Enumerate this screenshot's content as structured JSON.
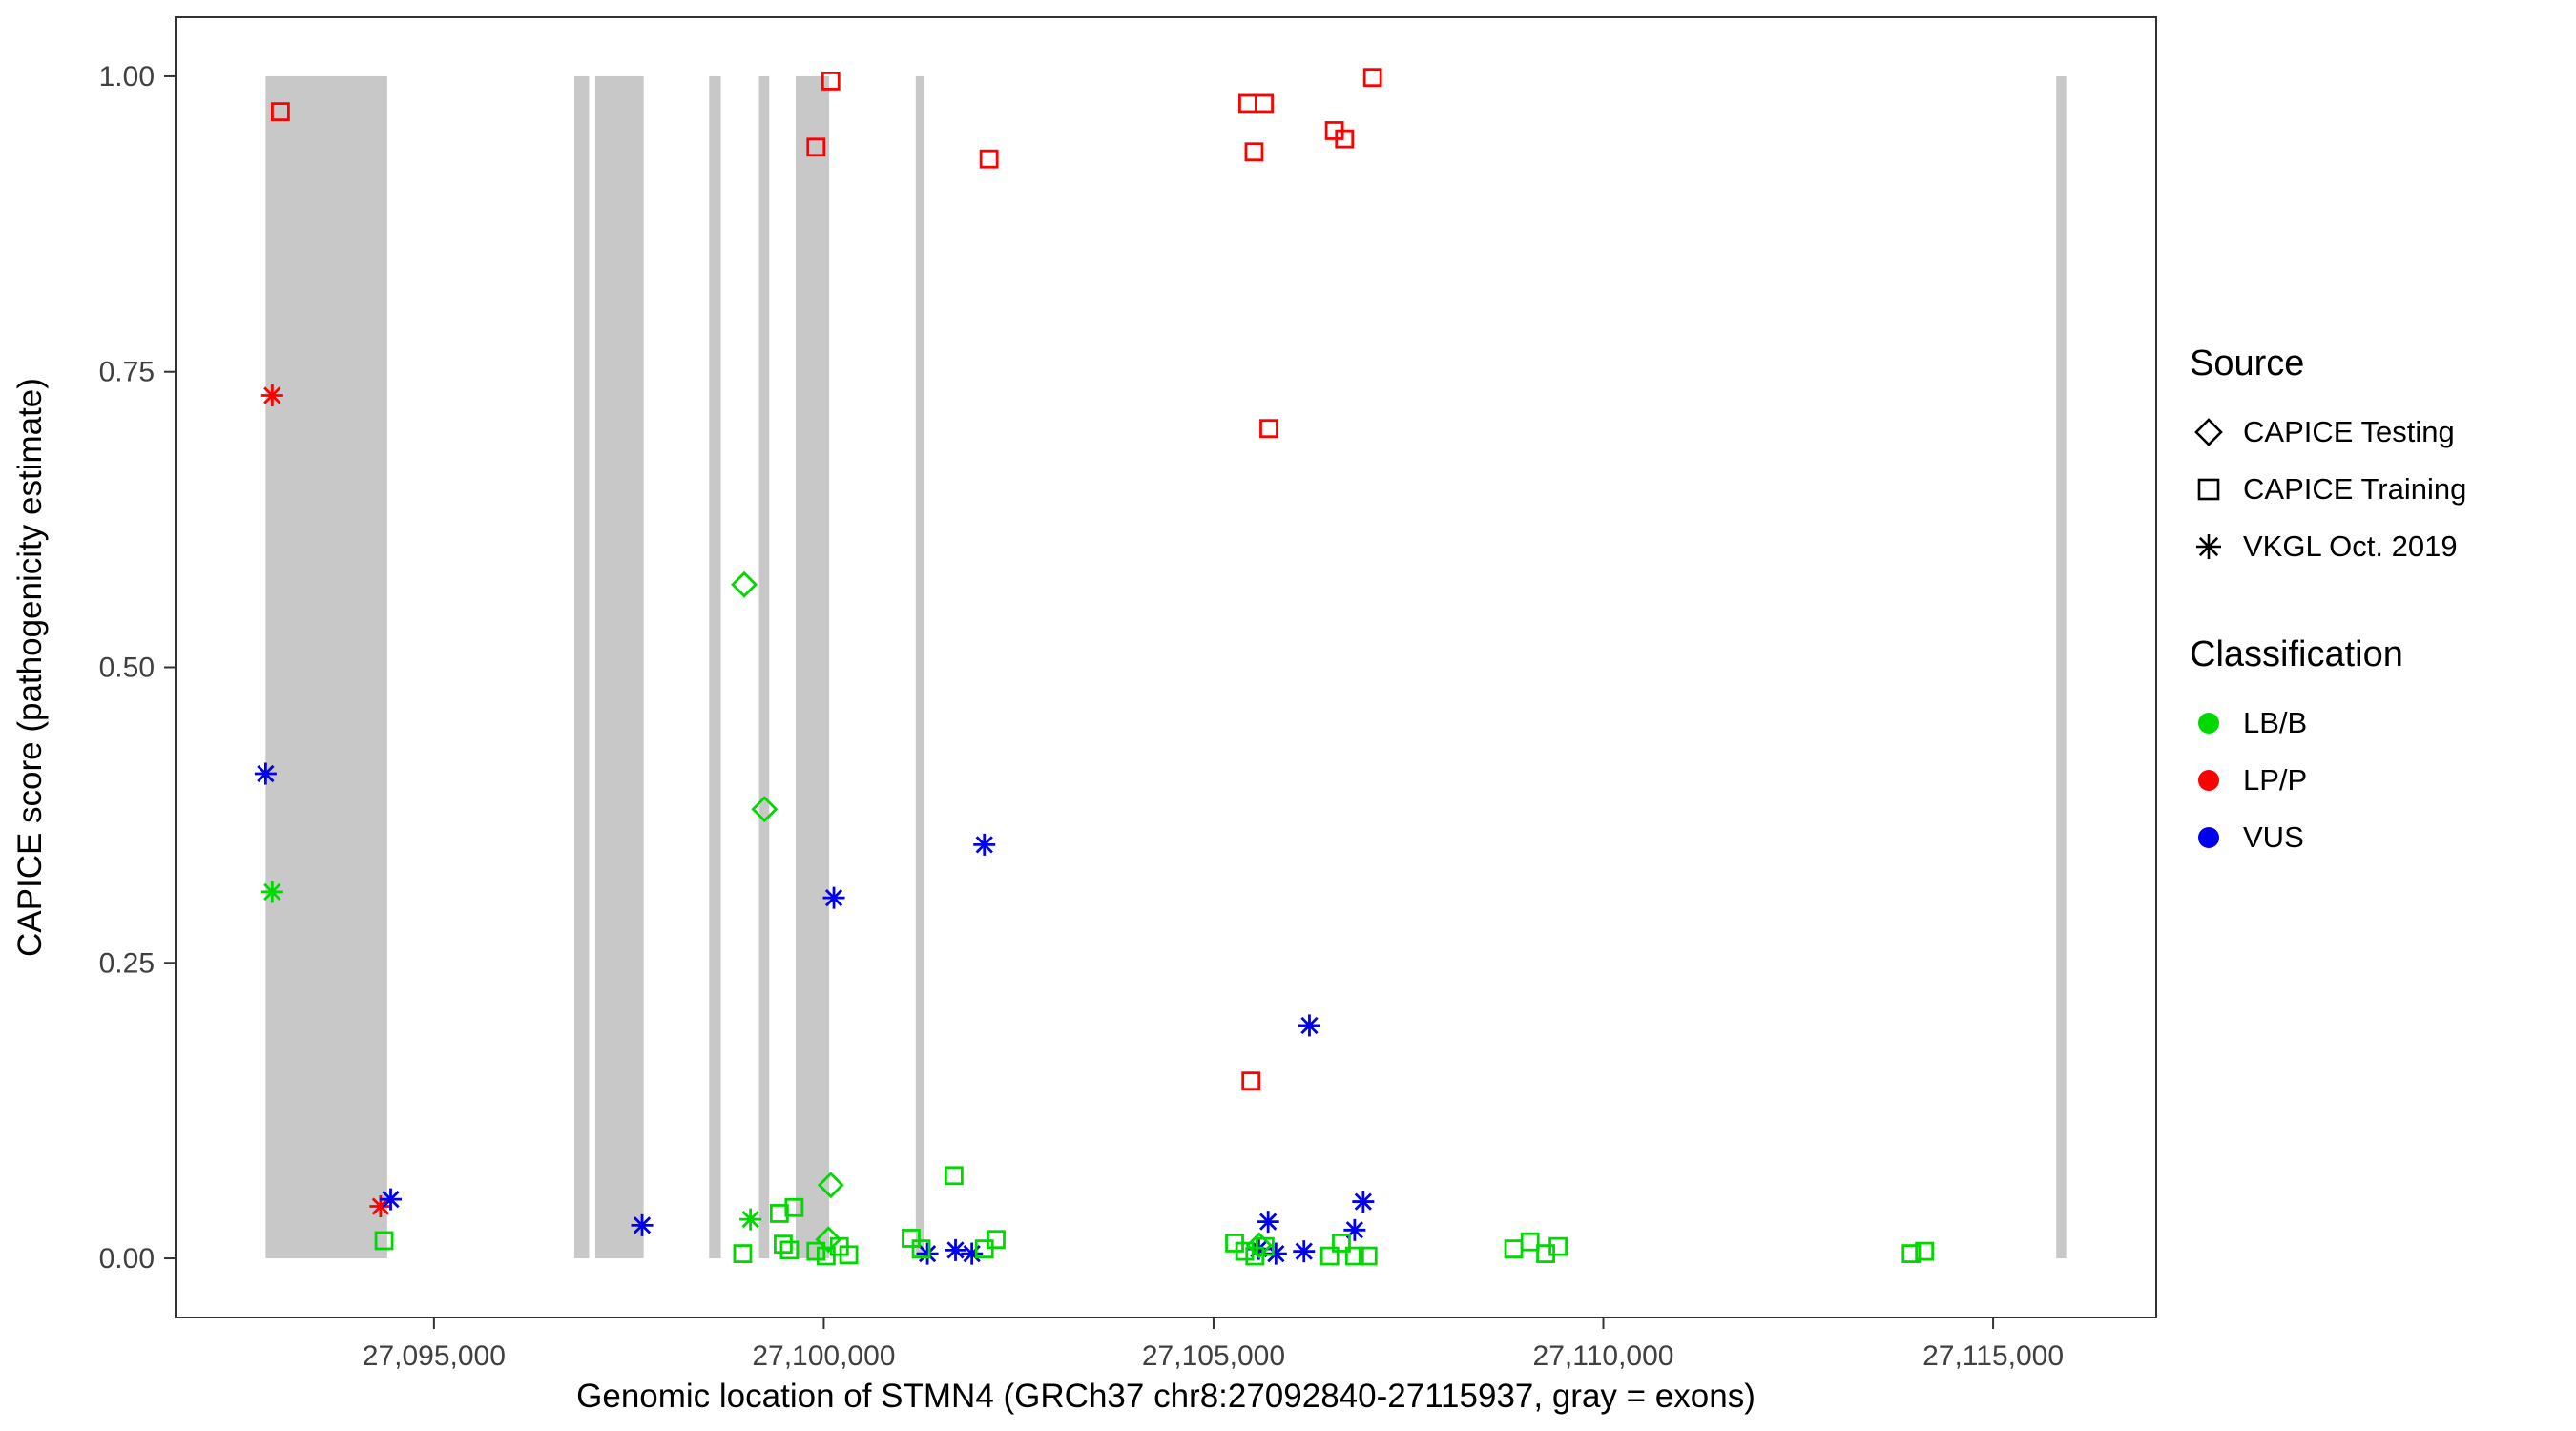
{
  "chart_data": {
    "type": "scatter",
    "title": "",
    "xlabel": "Genomic location of STMN4 (GRCh37 chr8:27092840-27115937, gray = exons)",
    "ylabel": "CAPICE score (pathogenicity estimate)",
    "xlim": [
      27091685,
      27117092
    ],
    "ylim": [
      -0.05,
      1.05
    ],
    "grid": false,
    "panel_border_color": "#333333",
    "exon_color": "#C8C8C8",
    "x_ticks": [
      {
        "value": 27095000,
        "label": "27,095,000"
      },
      {
        "value": 27100000,
        "label": "27,100,000"
      },
      {
        "value": 27105000,
        "label": "27,105,000"
      },
      {
        "value": 27110000,
        "label": "27,110,000"
      },
      {
        "value": 27115000,
        "label": "27,115,000"
      }
    ],
    "y_ticks": [
      {
        "value": 0.0,
        "label": "0.00"
      },
      {
        "value": 0.25,
        "label": "0.25"
      },
      {
        "value": 0.5,
        "label": "0.50"
      },
      {
        "value": 0.75,
        "label": "0.75"
      },
      {
        "value": 1.0,
        "label": "1.00"
      }
    ],
    "exons": [
      [
        27092840,
        27094400
      ],
      [
        27096800,
        27096990
      ],
      [
        27097070,
        27097690
      ],
      [
        27098530,
        27098680
      ],
      [
        27099170,
        27099300
      ],
      [
        27099640,
        27100070
      ],
      [
        27101180,
        27101290
      ],
      [
        27115810,
        27115937
      ]
    ],
    "series": [
      {
        "source": "CAPICE Training",
        "classification": "LP/P",
        "shape": "square",
        "color": "#FF0000",
        "points": [
          [
            27093030,
            0.97
          ],
          [
            27100090,
            0.996
          ],
          [
            27099900,
            0.94
          ],
          [
            27102120,
            0.93
          ],
          [
            27105440,
            0.977
          ],
          [
            27105650,
            0.977
          ],
          [
            27105520,
            0.936
          ],
          [
            27106550,
            0.954
          ],
          [
            27106680,
            0.947
          ],
          [
            27107040,
            0.999
          ],
          [
            27105710,
            0.702
          ],
          [
            27105480,
            0.15
          ]
        ]
      },
      {
        "source": "VKGL Oct. 2019",
        "classification": "LP/P",
        "shape": "asterisk",
        "color": "#FF0000",
        "points": [
          [
            27092925,
            0.73
          ],
          [
            27094315,
            0.044
          ]
        ]
      },
      {
        "source": "VKGL Oct. 2019",
        "classification": "VUS",
        "shape": "asterisk",
        "color": "#0000EE",
        "points": [
          [
            27092840,
            0.41
          ],
          [
            27094445,
            0.05
          ],
          [
            27097670,
            0.028
          ],
          [
            27100130,
            0.305
          ],
          [
            27102060,
            0.35
          ],
          [
            27106230,
            0.197
          ],
          [
            27106920,
            0.048
          ],
          [
            27106810,
            0.024
          ],
          [
            27105700,
            0.031
          ],
          [
            27105580,
            0.008
          ],
          [
            27105800,
            0.004
          ],
          [
            27106160,
            0.006
          ],
          [
            27101330,
            0.004
          ],
          [
            27101690,
            0.007
          ],
          [
            27101900,
            0.004
          ]
        ]
      },
      {
        "source": "VKGL Oct. 2019",
        "classification": "LB/B",
        "shape": "asterisk",
        "color": "#00D800",
        "points": [
          [
            27092925,
            0.31
          ],
          [
            27099060,
            0.033
          ]
        ]
      },
      {
        "source": "CAPICE Testing",
        "classification": "LB/B",
        "shape": "diamond",
        "color": "#00D800",
        "points": [
          [
            27098980,
            0.57
          ],
          [
            27099240,
            0.38
          ],
          [
            27100090,
            0.062
          ],
          [
            27100060,
            0.016
          ],
          [
            27105585,
            0.011
          ]
        ]
      },
      {
        "source": "CAPICE Training",
        "classification": "LB/B",
        "shape": "square",
        "color": "#00D800",
        "points": [
          [
            27094360,
            0.015
          ],
          [
            27098960,
            0.004
          ],
          [
            27099430,
            0.038
          ],
          [
            27099620,
            0.043
          ],
          [
            27099480,
            0.012
          ],
          [
            27099560,
            0.007
          ],
          [
            27099900,
            0.006
          ],
          [
            27100030,
            0.002
          ],
          [
            27100200,
            0.01
          ],
          [
            27100320,
            0.003
          ],
          [
            27101120,
            0.017
          ],
          [
            27101250,
            0.008
          ],
          [
            27101670,
            0.07
          ],
          [
            27102060,
            0.008
          ],
          [
            27102210,
            0.016
          ],
          [
            27105270,
            0.013
          ],
          [
            27105400,
            0.006
          ],
          [
            27105530,
            0.002
          ],
          [
            27105660,
            0.01
          ],
          [
            27106490,
            0.002
          ],
          [
            27106640,
            0.013
          ],
          [
            27106810,
            0.002
          ],
          [
            27106980,
            0.002
          ],
          [
            27108850,
            0.008
          ],
          [
            27109060,
            0.014
          ],
          [
            27109260,
            0.004
          ],
          [
            27109420,
            0.01
          ],
          [
            27113950,
            0.004
          ],
          [
            27114120,
            0.006
          ]
        ]
      }
    ]
  },
  "legend": {
    "source": {
      "title": "Source",
      "items": [
        {
          "label": "CAPICE Testing",
          "shape": "diamond"
        },
        {
          "label": "CAPICE Training",
          "shape": "square"
        },
        {
          "label": "VKGL Oct. 2019",
          "shape": "asterisk"
        }
      ]
    },
    "classification": {
      "title": "Classification",
      "items": [
        {
          "label": "LB/B",
          "color": "#00D800"
        },
        {
          "label": "LP/P",
          "color": "#FF0000"
        },
        {
          "label": "VUS",
          "color": "#0000EE"
        }
      ]
    }
  }
}
